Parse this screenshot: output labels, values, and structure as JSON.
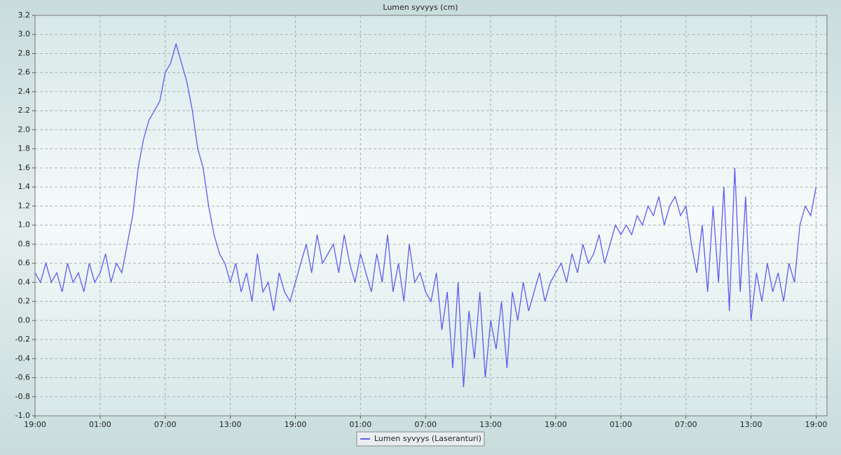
{
  "chart_data": {
    "type": "line",
    "title": "Lumen syvyys (cm)",
    "x": [
      0,
      0.5,
      1,
      1.5,
      2,
      2.5,
      3,
      3.5,
      4,
      4.5,
      5,
      5.5,
      6,
      6.5,
      7,
      7.5,
      8,
      8.5,
      9,
      9.5,
      10,
      10.5,
      11,
      11.5,
      12,
      12.5,
      13,
      13.5,
      14,
      14.5,
      15,
      15.5,
      16,
      16.5,
      17,
      17.5,
      18,
      18.5,
      19,
      19.5,
      20,
      20.5,
      21,
      21.5,
      22,
      22.5,
      23,
      23.5,
      24,
      24.5,
      25,
      25.5,
      26,
      26.5,
      27,
      27.5,
      28,
      28.5,
      29,
      29.5,
      30,
      30.5,
      31,
      31.5,
      32,
      32.5,
      33,
      33.5,
      34,
      34.5,
      35,
      35.5,
      36,
      36.5,
      37,
      37.5,
      38,
      38.5,
      39,
      39.5,
      40,
      40.5,
      41,
      41.5,
      42,
      42.5,
      43,
      43.5,
      44,
      44.5,
      45,
      45.5,
      46,
      46.5,
      47,
      47.5,
      48,
      48.5,
      49,
      49.5,
      50,
      50.5,
      51,
      51.5,
      52,
      52.5,
      53,
      53.5,
      54,
      54.5,
      55,
      55.5,
      56,
      56.5,
      57,
      57.5,
      58,
      58.5,
      59,
      59.5,
      60,
      60.5,
      61,
      61.5,
      62,
      62.5,
      63,
      63.5,
      64,
      64.5,
      65,
      65.5,
      66,
      66.5,
      67,
      67.5,
      68,
      68.5,
      69,
      69.5,
      70,
      70.5,
      71,
      71.5,
      72
    ],
    "series": [
      {
        "name": "Lumen syvyys (Laseranturi)",
        "color": "#5c5cf0",
        "values": [
          0.5,
          0.4,
          0.6,
          0.4,
          0.5,
          0.3,
          0.6,
          0.4,
          0.5,
          0.3,
          0.6,
          0.4,
          0.5,
          0.7,
          0.4,
          0.6,
          0.5,
          0.8,
          1.1,
          1.6,
          1.9,
          2.1,
          2.2,
          2.3,
          2.6,
          2.7,
          2.9,
          2.7,
          2.5,
          2.2,
          1.8,
          1.6,
          1.2,
          0.9,
          0.7,
          0.6,
          0.4,
          0.6,
          0.3,
          0.5,
          0.2,
          0.7,
          0.3,
          0.4,
          0.1,
          0.5,
          0.3,
          0.2,
          0.4,
          0.6,
          0.8,
          0.5,
          0.9,
          0.6,
          0.7,
          0.8,
          0.5,
          0.9,
          0.6,
          0.4,
          0.7,
          0.5,
          0.3,
          0.7,
          0.4,
          0.9,
          0.3,
          0.6,
          0.2,
          0.8,
          0.4,
          0.5,
          0.3,
          0.2,
          0.5,
          -0.1,
          0.3,
          -0.5,
          0.4,
          -0.7,
          0.1,
          -0.4,
          0.3,
          -0.6,
          0.0,
          -0.3,
          0.2,
          -0.5,
          0.3,
          0.0,
          0.4,
          0.1,
          0.3,
          0.5,
          0.2,
          0.4,
          0.5,
          0.6,
          0.4,
          0.7,
          0.5,
          0.8,
          0.6,
          0.7,
          0.9,
          0.6,
          0.8,
          1.0,
          0.9,
          1.0,
          0.9,
          1.1,
          1.0,
          1.2,
          1.1,
          1.3,
          1.0,
          1.2,
          1.3,
          1.1,
          1.2,
          0.8,
          0.5,
          1.0,
          0.3,
          1.2,
          0.4,
          1.4,
          0.1,
          1.6,
          0.3,
          1.3,
          0.0,
          0.5,
          0.2,
          0.6,
          0.3,
          0.5,
          0.2,
          0.6,
          0.4,
          1.0,
          1.2,
          1.1,
          1.4
        ]
      }
    ],
    "xlim": [
      0,
      73
    ],
    "xticks": [
      {
        "value": 0,
        "label": "19:00"
      },
      {
        "value": 6,
        "label": "01:00"
      },
      {
        "value": 12,
        "label": "07:00"
      },
      {
        "value": 18,
        "label": "13:00"
      },
      {
        "value": 24,
        "label": "19:00"
      },
      {
        "value": 30,
        "label": "01:00"
      },
      {
        "value": 36,
        "label": "07:00"
      },
      {
        "value": 42,
        "label": "13:00"
      },
      {
        "value": 48,
        "label": "19:00"
      },
      {
        "value": 54,
        "label": "01:00"
      },
      {
        "value": 60,
        "label": "07:00"
      },
      {
        "value": 66,
        "label": "13:00"
      },
      {
        "value": 72,
        "label": "19:00"
      }
    ],
    "ylim": [
      -1,
      3.2
    ],
    "yticks": [
      {
        "value": -1,
        "label": "-1.0"
      },
      -0.8,
      -0.6,
      -0.4,
      -0.2,
      {
        "value": 0,
        "label": "0.0"
      },
      0.2,
      0.4,
      0.6,
      0.8,
      {
        "value": 1,
        "label": "1.0"
      },
      1.2,
      1.4,
      1.6,
      1.8,
      {
        "value": 2,
        "label": "2.0"
      },
      2.2,
      2.4,
      2.6,
      2.8,
      {
        "value": 3,
        "label": "3.0"
      },
      3.2
    ],
    "grid": true,
    "legend": "bottom"
  }
}
